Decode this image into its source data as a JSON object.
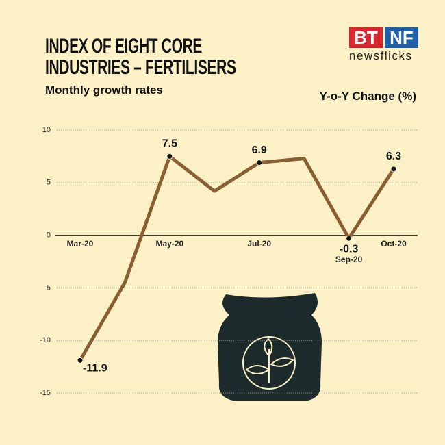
{
  "logo": {
    "left": "BT",
    "right": "NF",
    "tagline": "newsflicks"
  },
  "chart_data": {
    "type": "line",
    "title": "INDEX OF EIGHT CORE INDUSTRIES – FERTILISERS",
    "subtitle": "Monthly growth rates",
    "y_label": "Y-o-Y Change (%)",
    "categories": [
      "Mar-20",
      null,
      "May-20",
      null,
      "Jul-20",
      null,
      "Sep-20",
      "Oct-20"
    ],
    "values": [
      -11.9,
      -4.5,
      7.5,
      4.2,
      6.9,
      7.3,
      -0.3,
      6.3
    ],
    "value_labels": [
      "-11.9",
      null,
      "7.5",
      null,
      "6.9",
      null,
      "-0.3",
      "6.3"
    ],
    "color": "#8a5e33",
    "ylim": [
      -15,
      10
    ],
    "yticks": [
      10,
      5,
      0,
      -5,
      -10,
      -15
    ],
    "grid": true
  }
}
